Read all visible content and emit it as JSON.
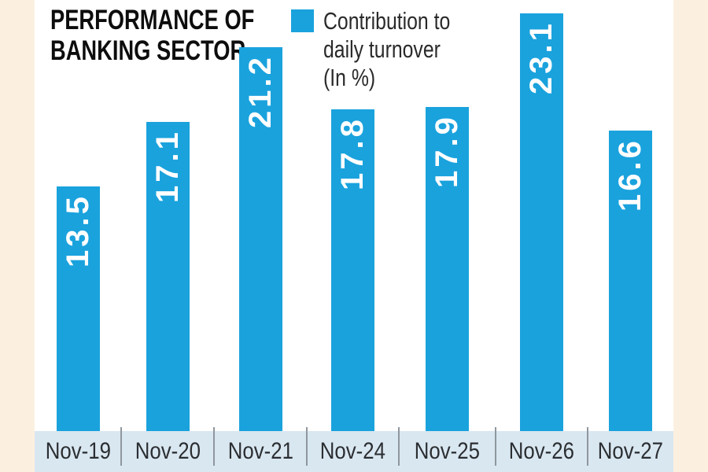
{
  "title": {
    "line1": "PERFORMANCE OF",
    "line2": "BANKING SECTOR"
  },
  "legend": {
    "lines": [
      "Contribution to",
      "daily turnover",
      "(In %)"
    ],
    "full_label": "Contribution to daily turnover (In %)"
  },
  "colors": {
    "bar": "#1AA2DD",
    "axis_band": "#D9E7F1",
    "page_margin": "#FBF0E0",
    "value_label": "#FFFFFF",
    "title_text": "#0D0D0D"
  },
  "chart_data": {
    "type": "bar",
    "title": "PERFORMANCE OF BANKING SECTOR",
    "series_label": "Contribution to daily turnover (In %)",
    "categories": [
      "Nov-19",
      "Nov-20",
      "Nov-21",
      "Nov-24",
      "Nov-25",
      "Nov-26",
      "Nov-27"
    ],
    "values": [
      13.5,
      17.1,
      21.2,
      17.8,
      17.9,
      23.1,
      16.6
    ],
    "value_format": "1 decimal, shown rotated 90° inside bar top, white bold",
    "xlabel": "",
    "ylabel": "Contribution to daily turnover (In %)",
    "ylim": [
      0,
      24
    ],
    "grid": false,
    "legend_position": "top-right of title area"
  }
}
